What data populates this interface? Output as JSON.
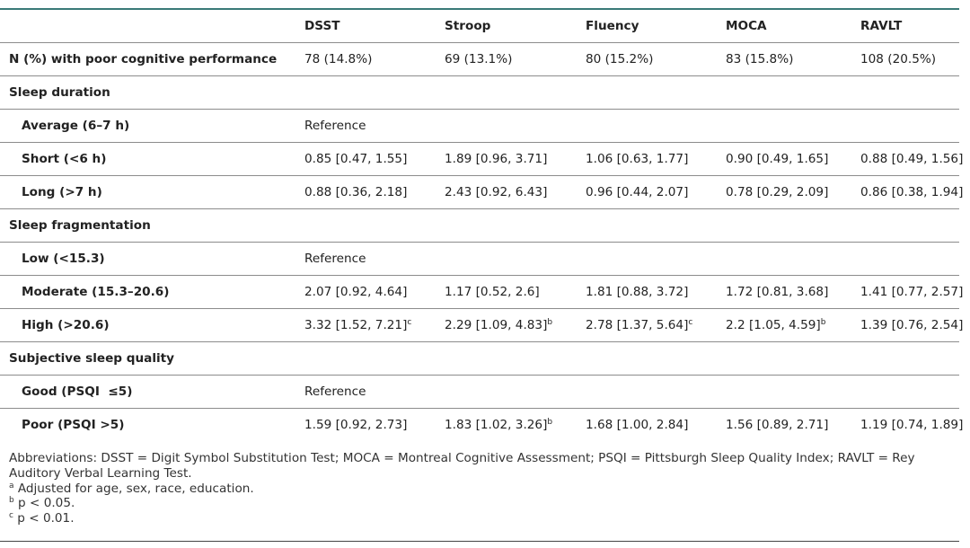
{
  "table": {
    "headers": [
      "",
      "DSST",
      "Stroop",
      "Fluency",
      "MOCA",
      "RAVLT"
    ],
    "rows": [
      {
        "kind": "data",
        "label": "N (%) with poor cognitive performance",
        "cells": [
          {
            "v": "78 (14.8%)",
            "s": ""
          },
          {
            "v": "69 (13.1%)",
            "s": ""
          },
          {
            "v": "80 (15.2%)",
            "s": ""
          },
          {
            "v": "83 (15.8%)",
            "s": ""
          },
          {
            "v": "108 (20.5%)",
            "s": ""
          }
        ]
      },
      {
        "kind": "section",
        "label": "Sleep duration"
      },
      {
        "kind": "reference",
        "label": "Average (6–7 h)",
        "ref": "Reference"
      },
      {
        "kind": "sub",
        "label": "Short (<6 h)",
        "cells": [
          {
            "v": "0.85 [0.47, 1.55]",
            "s": ""
          },
          {
            "v": "1.89 [0.96, 3.71]",
            "s": ""
          },
          {
            "v": "1.06 [0.63, 1.77]",
            "s": ""
          },
          {
            "v": "0.90 [0.49, 1.65]",
            "s": ""
          },
          {
            "v": "0.88 [0.49, 1.56]",
            "s": ""
          }
        ]
      },
      {
        "kind": "sub",
        "label": "Long (>7 h)",
        "cells": [
          {
            "v": "0.88 [0.36, 2.18]",
            "s": ""
          },
          {
            "v": "2.43 [0.92, 6.43]",
            "s": ""
          },
          {
            "v": "0.96 [0.44, 2.07]",
            "s": ""
          },
          {
            "v": "0.78 [0.29, 2.09]",
            "s": ""
          },
          {
            "v": "0.86 [0.38, 1.94]",
            "s": ""
          }
        ]
      },
      {
        "kind": "section",
        "label": "Sleep fragmentation"
      },
      {
        "kind": "reference",
        "label": "Low (<15.3)",
        "ref": "Reference"
      },
      {
        "kind": "sub",
        "label": "Moderate (15.3–20.6)",
        "cells": [
          {
            "v": "2.07 [0.92, 4.64]",
            "s": ""
          },
          {
            "v": "1.17 [0.52, 2.6]",
            "s": ""
          },
          {
            "v": "1.81 [0.88, 3.72]",
            "s": ""
          },
          {
            "v": "1.72 [0.81, 3.68]",
            "s": ""
          },
          {
            "v": "1.41 [0.77, 2.57]",
            "s": ""
          }
        ]
      },
      {
        "kind": "sub",
        "label": "High (>20.6)",
        "cells": [
          {
            "v": "3.32 [1.52, 7.21]",
            "s": "c"
          },
          {
            "v": "2.29 [1.09, 4.83]",
            "s": "b"
          },
          {
            "v": "2.78 [1.37, 5.64]",
            "s": "c"
          },
          {
            "v": "2.2 [1.05, 4.59]",
            "s": "b"
          },
          {
            "v": "1.39 [0.76, 2.54]",
            "s": ""
          }
        ]
      },
      {
        "kind": "section",
        "label": "Subjective sleep quality"
      },
      {
        "kind": "reference",
        "label": "Good (PSQI  ≤5)",
        "ref": "Reference"
      },
      {
        "kind": "sub",
        "label": "Poor (PSQI >5)",
        "cells": [
          {
            "v": "1.59 [0.92, 2.73]",
            "s": ""
          },
          {
            "v": "1.83 [1.02, 3.26]",
            "s": "b"
          },
          {
            "v": "1.68 [1.00, 2.84]",
            "s": ""
          },
          {
            "v": "1.56 [0.89, 2.71]",
            "s": ""
          },
          {
            "v": "1.19 [0.74, 1.89]",
            "s": ""
          }
        ]
      }
    ]
  },
  "footnotes": {
    "abbreviations": "Abbreviations: DSST = Digit Symbol Substitution Test; MOCA = Montreal Cognitive Assessment; PSQI = Pittsburgh Sleep Quality Index; RAVLT = Rey Auditory Verbal Learning Test.",
    "notes": [
      {
        "mark": "a",
        "text": "Adjusted for age, sex, race, education."
      },
      {
        "mark": "b",
        "text": "p < 0.05."
      },
      {
        "mark": "c",
        "text": "p < 0.01."
      }
    ]
  }
}
